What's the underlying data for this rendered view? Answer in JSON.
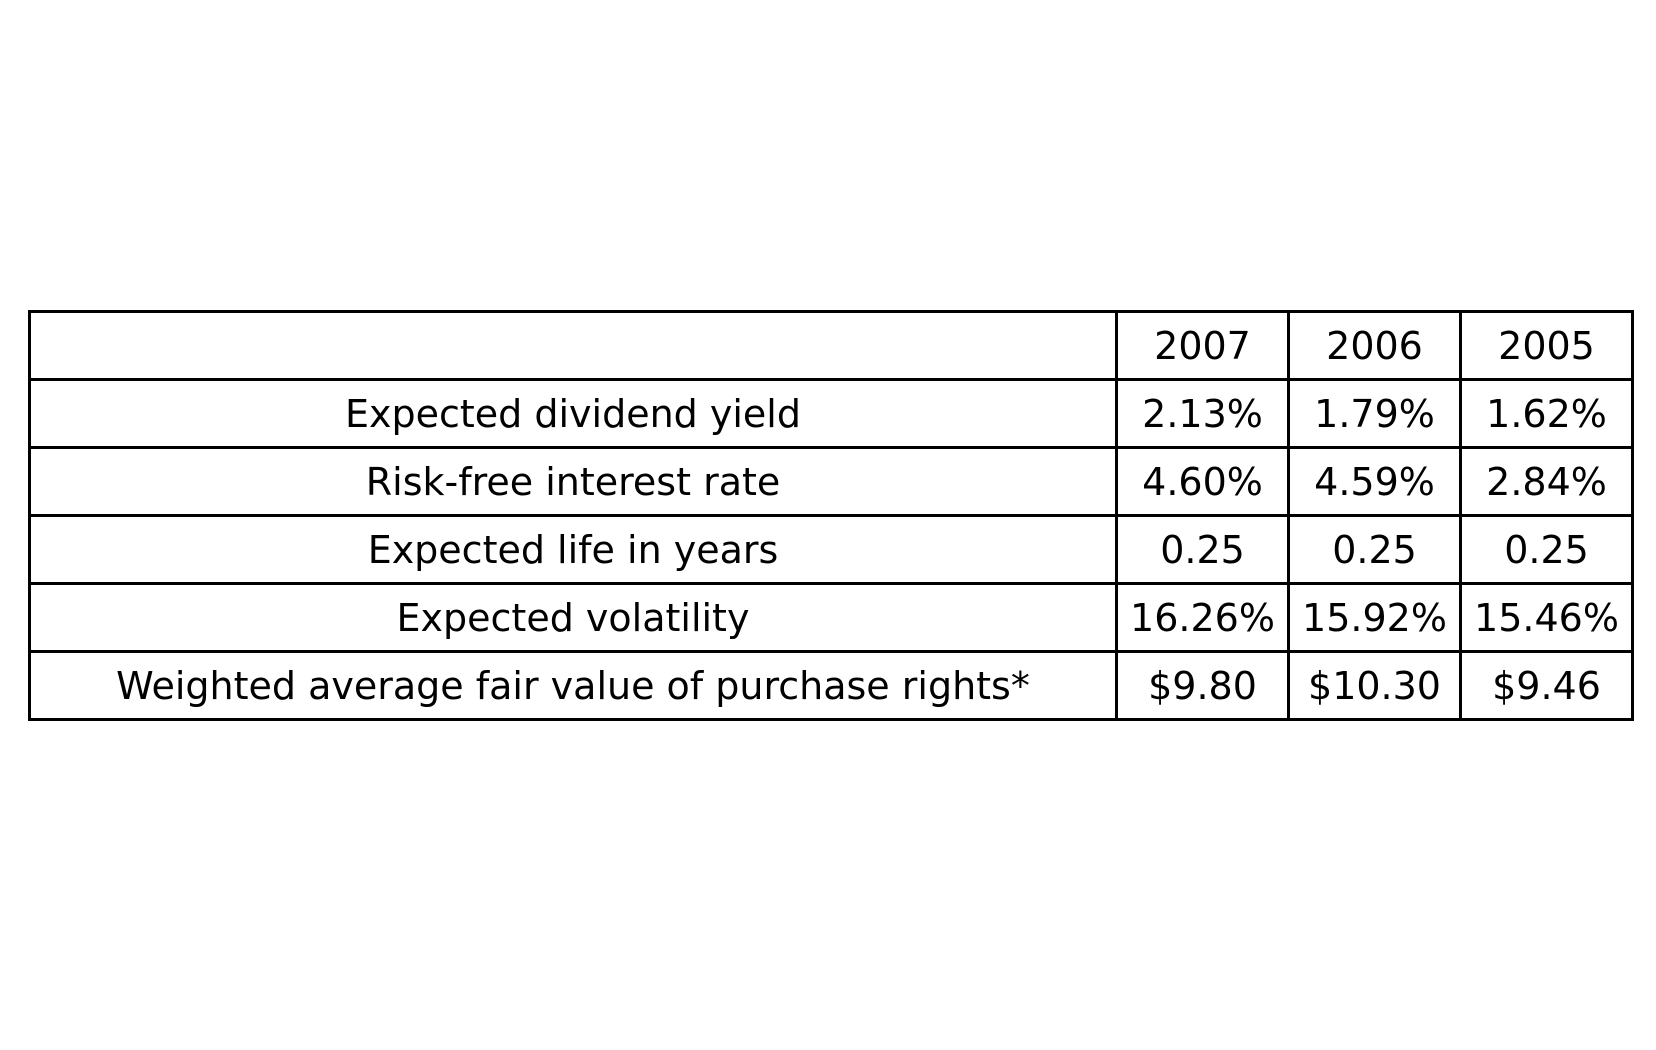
{
  "chart_data": {
    "type": "table",
    "columns": [
      "",
      "2007",
      "2006",
      "2005"
    ],
    "rows": [
      {
        "label": "Expected dividend yield",
        "values": [
          "2.13%",
          "1.79%",
          "1.62%"
        ]
      },
      {
        "label": "Risk-free interest rate",
        "values": [
          "4.60%",
          "4.59%",
          "2.84%"
        ]
      },
      {
        "label": "Expected life in years",
        "values": [
          "0.25",
          "0.25",
          "0.25"
        ]
      },
      {
        "label": "Expected volatility",
        "values": [
          "16.26%",
          "15.92%",
          "15.46%"
        ]
      },
      {
        "label": "Weighted average fair value of purchase rights*",
        "values": [
          "$9.80",
          "$10.30",
          "$9.46"
        ]
      }
    ]
  }
}
